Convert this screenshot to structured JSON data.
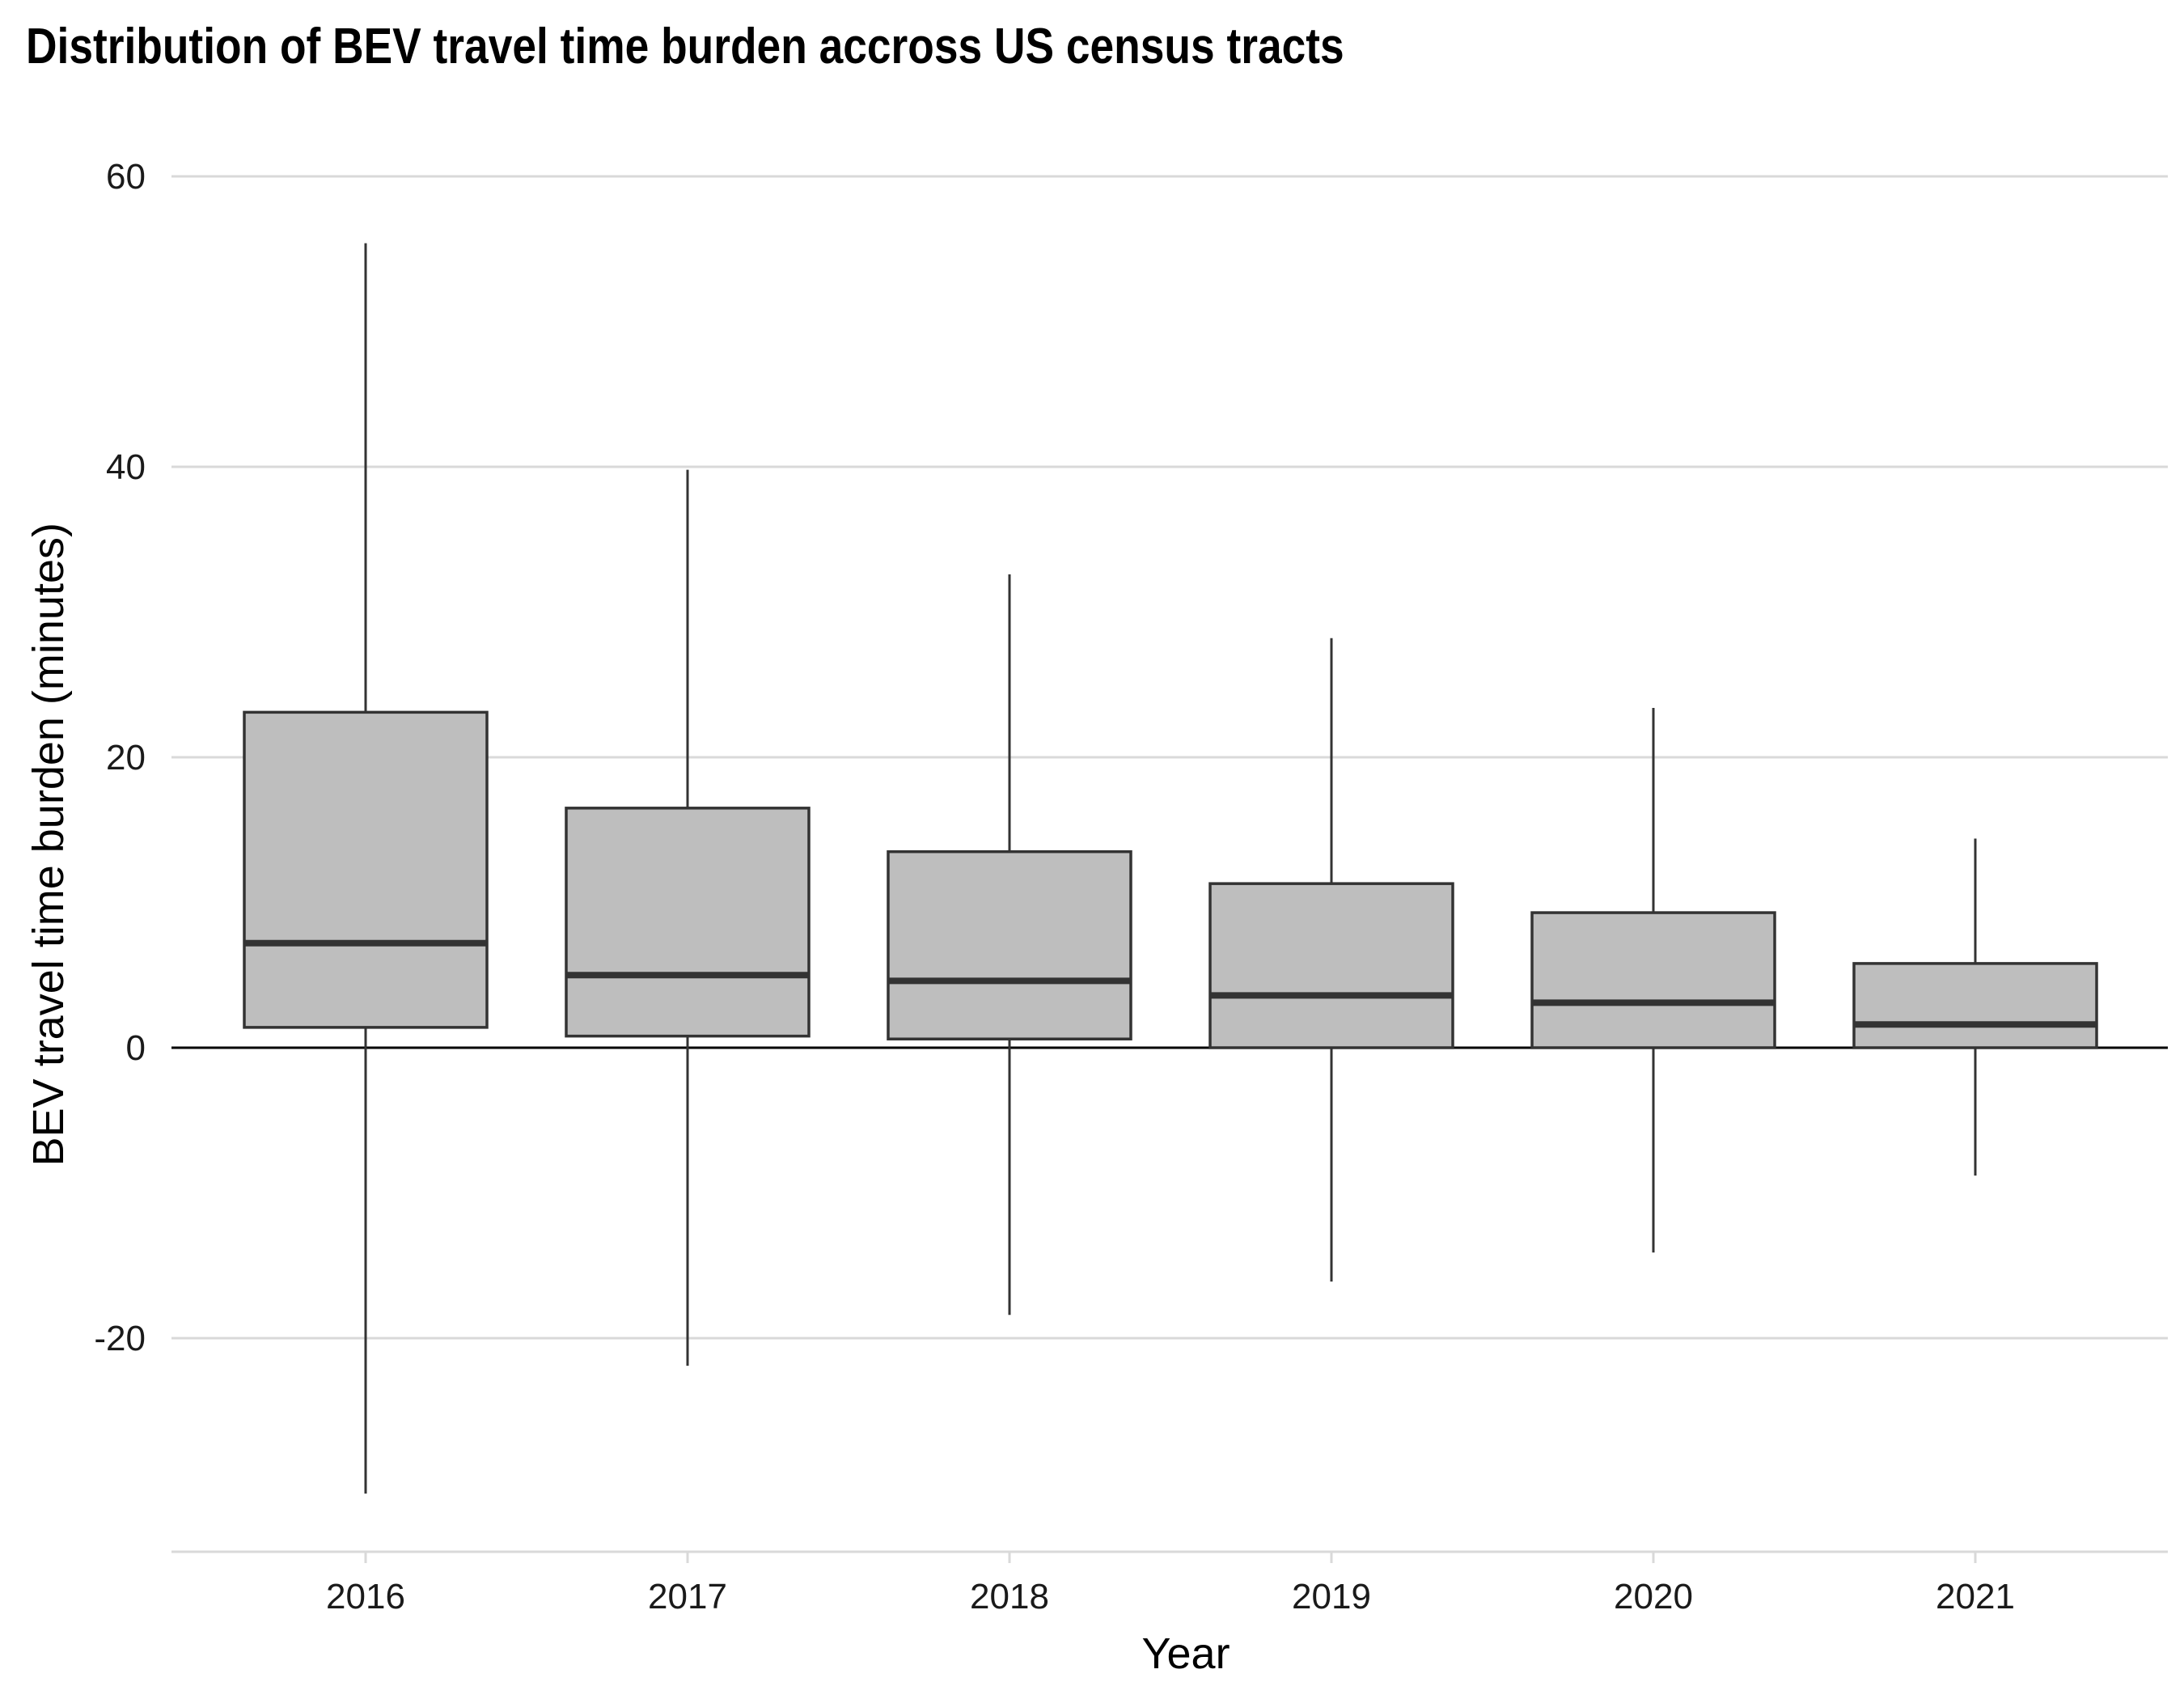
{
  "chart_data": {
    "type": "boxplot",
    "title": "Distribution of BEV travel time burden accross US census tracts",
    "xlabel": "Year",
    "ylabel": "BEV travel time burden (minutes)",
    "categories": [
      "2016",
      "2017",
      "2018",
      "2019",
      "2020",
      "2021"
    ],
    "ylim": [
      -34,
      62
    ],
    "yticks": [
      -20,
      0,
      20,
      40,
      60
    ],
    "grid": true,
    "zero_line": true,
    "box_fill": "#bebebe",
    "box_stroke": "#333333",
    "boxes": [
      {
        "category": "2016",
        "whisker_low": -30.7,
        "q1": 1.4,
        "median": 7.2,
        "q3": 23.1,
        "whisker_high": 55.4
      },
      {
        "category": "2017",
        "whisker_low": -21.9,
        "q1": 0.8,
        "median": 5.0,
        "q3": 16.5,
        "whisker_high": 39.8
      },
      {
        "category": "2018",
        "whisker_low": -18.4,
        "q1": 0.6,
        "median": 4.6,
        "q3": 13.5,
        "whisker_high": 32.6
      },
      {
        "category": "2019",
        "whisker_low": -16.1,
        "q1": 0.0,
        "median": 3.6,
        "q3": 11.3,
        "whisker_high": 28.2
      },
      {
        "category": "2020",
        "whisker_low": -14.1,
        "q1": 0.0,
        "median": 3.1,
        "q3": 9.3,
        "whisker_high": 23.4
      },
      {
        "category": "2021",
        "whisker_low": -8.8,
        "q1": 0.0,
        "median": 1.6,
        "q3": 5.8,
        "whisker_high": 14.4
      }
    ]
  }
}
